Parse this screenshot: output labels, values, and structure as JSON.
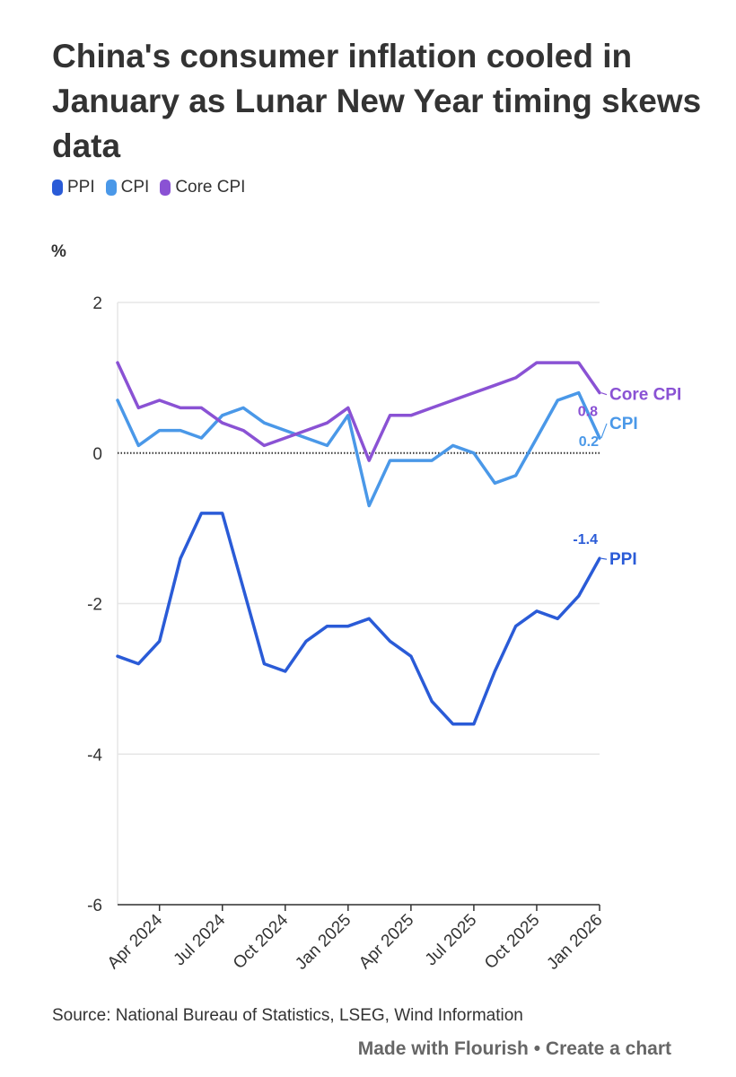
{
  "title": "China's consumer inflation cooled in January as Lunar New Year timing skews data",
  "source": "Source: National Bureau of Statistics, LSEG, Wind Information",
  "credit": {
    "made_with": "Made with Flourish",
    "separator": "•",
    "create": "Create a chart"
  },
  "colors": {
    "PPI": "#2a5bd7",
    "CPI": "#4a98e8",
    "Core CPI": "#8a52d4",
    "grid": "#e6e6e6",
    "axis": "#333333"
  },
  "chart_data": {
    "type": "line",
    "title": "China's consumer inflation cooled in January as Lunar New Year timing skews data",
    "ylabel": "%",
    "xlabel": "",
    "ylim": [
      -6,
      2
    ],
    "yticks": [
      2,
      0,
      -2,
      -4,
      -6
    ],
    "ytick_labels": [
      "2",
      "0",
      "-2",
      "-4",
      "-6"
    ],
    "xtick_labels": [
      "Apr 2024",
      "Jul 2024",
      "Oct 2024",
      "Jan 2025",
      "Apr 2025",
      "Jul 2025",
      "Oct 2025",
      "Jan 2026"
    ],
    "xtick_index": [
      2,
      5,
      8,
      11,
      14,
      17,
      20,
      23
    ],
    "legend_position": "top-left",
    "x": [
      "Feb 2024",
      "Mar 2024",
      "Apr 2024",
      "May 2024",
      "Jun 2024",
      "Jul 2024",
      "Aug 2024",
      "Sep 2024",
      "Oct 2024",
      "Nov 2024",
      "Dec 2024",
      "Jan 2025",
      "Feb 2025",
      "Mar 2025",
      "Apr 2025",
      "May 2025",
      "Jun 2025",
      "Jul 2025",
      "Aug 2025",
      "Sep 2025",
      "Oct 2025",
      "Nov 2025",
      "Dec 2025",
      "Jan 2026"
    ],
    "series": [
      {
        "name": "PPI",
        "end_label": "PPI",
        "last_value_label": "-1.4",
        "values": [
          -2.7,
          -2.8,
          -2.5,
          -1.4,
          -0.8,
          -0.8,
          -1.8,
          -2.8,
          -2.9,
          -2.5,
          -2.3,
          -2.3,
          -2.2,
          -2.5,
          -2.7,
          -3.3,
          -3.6,
          -3.6,
          -2.9,
          -2.3,
          -2.1,
          -2.2,
          -1.9,
          -1.4
        ]
      },
      {
        "name": "CPI",
        "end_label": "CPI",
        "last_value_label": "0.2",
        "values": [
          0.7,
          0.1,
          0.3,
          0.3,
          0.2,
          0.5,
          0.6,
          0.4,
          0.3,
          0.2,
          0.1,
          0.5,
          -0.7,
          -0.1,
          -0.1,
          -0.1,
          0.1,
          0.0,
          -0.4,
          -0.3,
          0.2,
          0.7,
          0.8,
          0.2
        ]
      },
      {
        "name": "Core CPI",
        "end_label": "Core CPI",
        "last_value_label": "0.8",
        "values": [
          1.2,
          0.6,
          0.7,
          0.6,
          0.6,
          0.4,
          0.3,
          0.1,
          0.2,
          0.3,
          0.4,
          0.6,
          -0.1,
          0.5,
          0.5,
          0.6,
          0.7,
          0.8,
          0.9,
          1.0,
          1.2,
          1.2,
          1.2,
          0.8
        ]
      }
    ]
  }
}
